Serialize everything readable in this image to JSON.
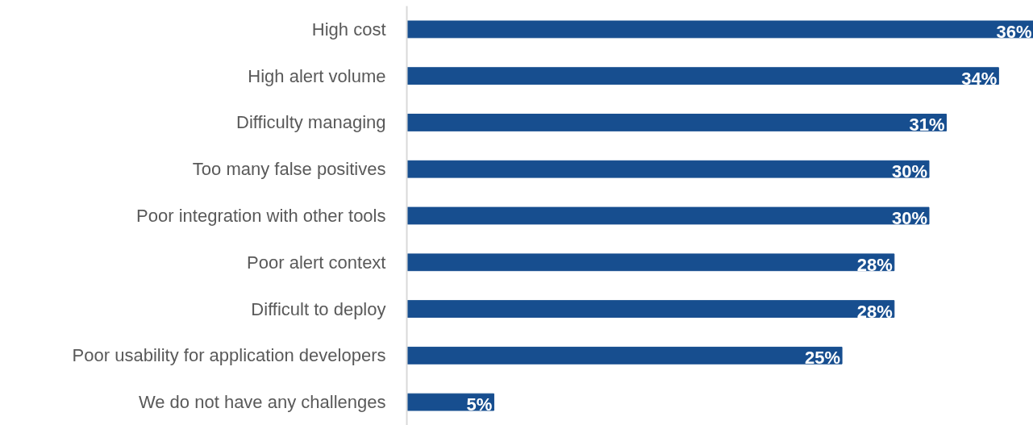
{
  "chart_data": {
    "type": "bar",
    "orientation": "horizontal",
    "categories": [
      "High cost",
      "High alert volume",
      "Difficulty managing",
      "Too many false positives",
      "Poor integration with other tools",
      "Poor alert context",
      "Difficult to deploy",
      "Poor usability for application developers",
      "We do not have any challenges"
    ],
    "values": [
      36,
      34,
      31,
      30,
      30,
      28,
      28,
      25,
      5
    ],
    "value_labels": [
      "36%",
      "34%",
      "31%",
      "30%",
      "30%",
      "28%",
      "28%",
      "25%",
      "5%"
    ],
    "color": "#174e8f"
  }
}
